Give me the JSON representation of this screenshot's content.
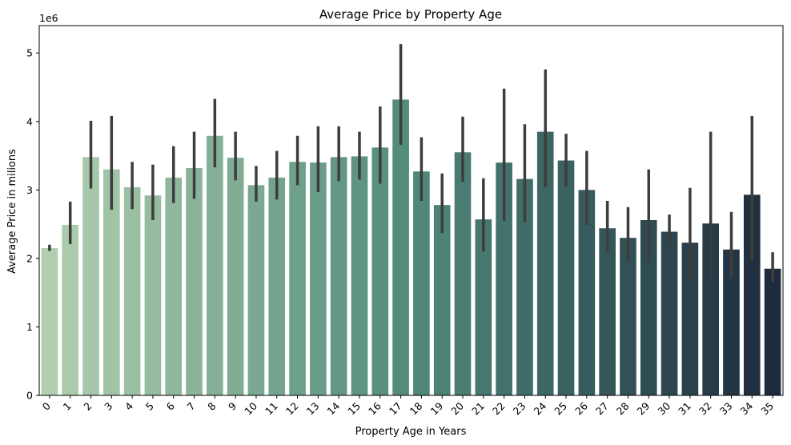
{
  "chart_data": {
    "type": "bar",
    "title": "Average Price by Property Age",
    "xlabel": "Property Age in Years",
    "ylabel": "Average Price in milions",
    "y_offset_label": "1e6",
    "ylim": [
      0,
      5.4
    ],
    "y_ticks": [
      0,
      1,
      2,
      3,
      4,
      5
    ],
    "y_tick_labels": [
      "0",
      "1",
      "2",
      "3",
      "4",
      "5"
    ],
    "grid": false,
    "legend": "none",
    "palette": {
      "start": "#b1cfaf",
      "mid": "#518a7a",
      "end": "#1e2b3e",
      "error_bar": "#3d3d3d"
    },
    "categories": [
      "0",
      "1",
      "2",
      "3",
      "4",
      "5",
      "6",
      "7",
      "8",
      "9",
      "10",
      "11",
      "12",
      "13",
      "14",
      "15",
      "16",
      "17",
      "18",
      "19",
      "20",
      "21",
      "22",
      "23",
      "24",
      "25",
      "26",
      "27",
      "28",
      "29",
      "30",
      "31",
      "32",
      "33",
      "34",
      "35"
    ],
    "values": [
      2.15,
      2.49,
      3.48,
      3.3,
      3.04,
      2.92,
      3.18,
      3.32,
      3.79,
      3.47,
      3.07,
      3.18,
      3.41,
      3.4,
      3.48,
      3.49,
      3.62,
      4.32,
      3.27,
      2.78,
      3.55,
      2.57,
      3.4,
      3.16,
      3.85,
      3.43,
      3.0,
      2.44,
      2.3,
      2.56,
      2.39,
      2.23,
      2.51,
      2.13,
      2.93,
      1.85
    ],
    "error_low": [
      2.11,
      2.21,
      3.02,
      2.71,
      2.72,
      2.56,
      2.81,
      2.87,
      3.33,
      3.14,
      2.83,
      2.86,
      3.07,
      2.97,
      3.13,
      3.15,
      3.09,
      3.66,
      2.84,
      2.37,
      3.12,
      2.1,
      2.55,
      2.53,
      3.04,
      3.05,
      2.49,
      2.09,
      1.95,
      1.93,
      2.18,
      1.68,
      1.72,
      1.72,
      1.97,
      1.65
    ],
    "error_high": [
      2.2,
      2.83,
      4.01,
      4.08,
      3.41,
      3.37,
      3.64,
      3.85,
      4.33,
      3.85,
      3.35,
      3.57,
      3.79,
      3.93,
      3.93,
      3.85,
      4.22,
      5.13,
      3.77,
      3.24,
      4.07,
      3.17,
      4.48,
      3.96,
      4.76,
      3.82,
      3.57,
      2.84,
      2.75,
      3.3,
      2.64,
      3.03,
      3.85,
      2.68,
      4.08,
      2.09
    ]
  }
}
